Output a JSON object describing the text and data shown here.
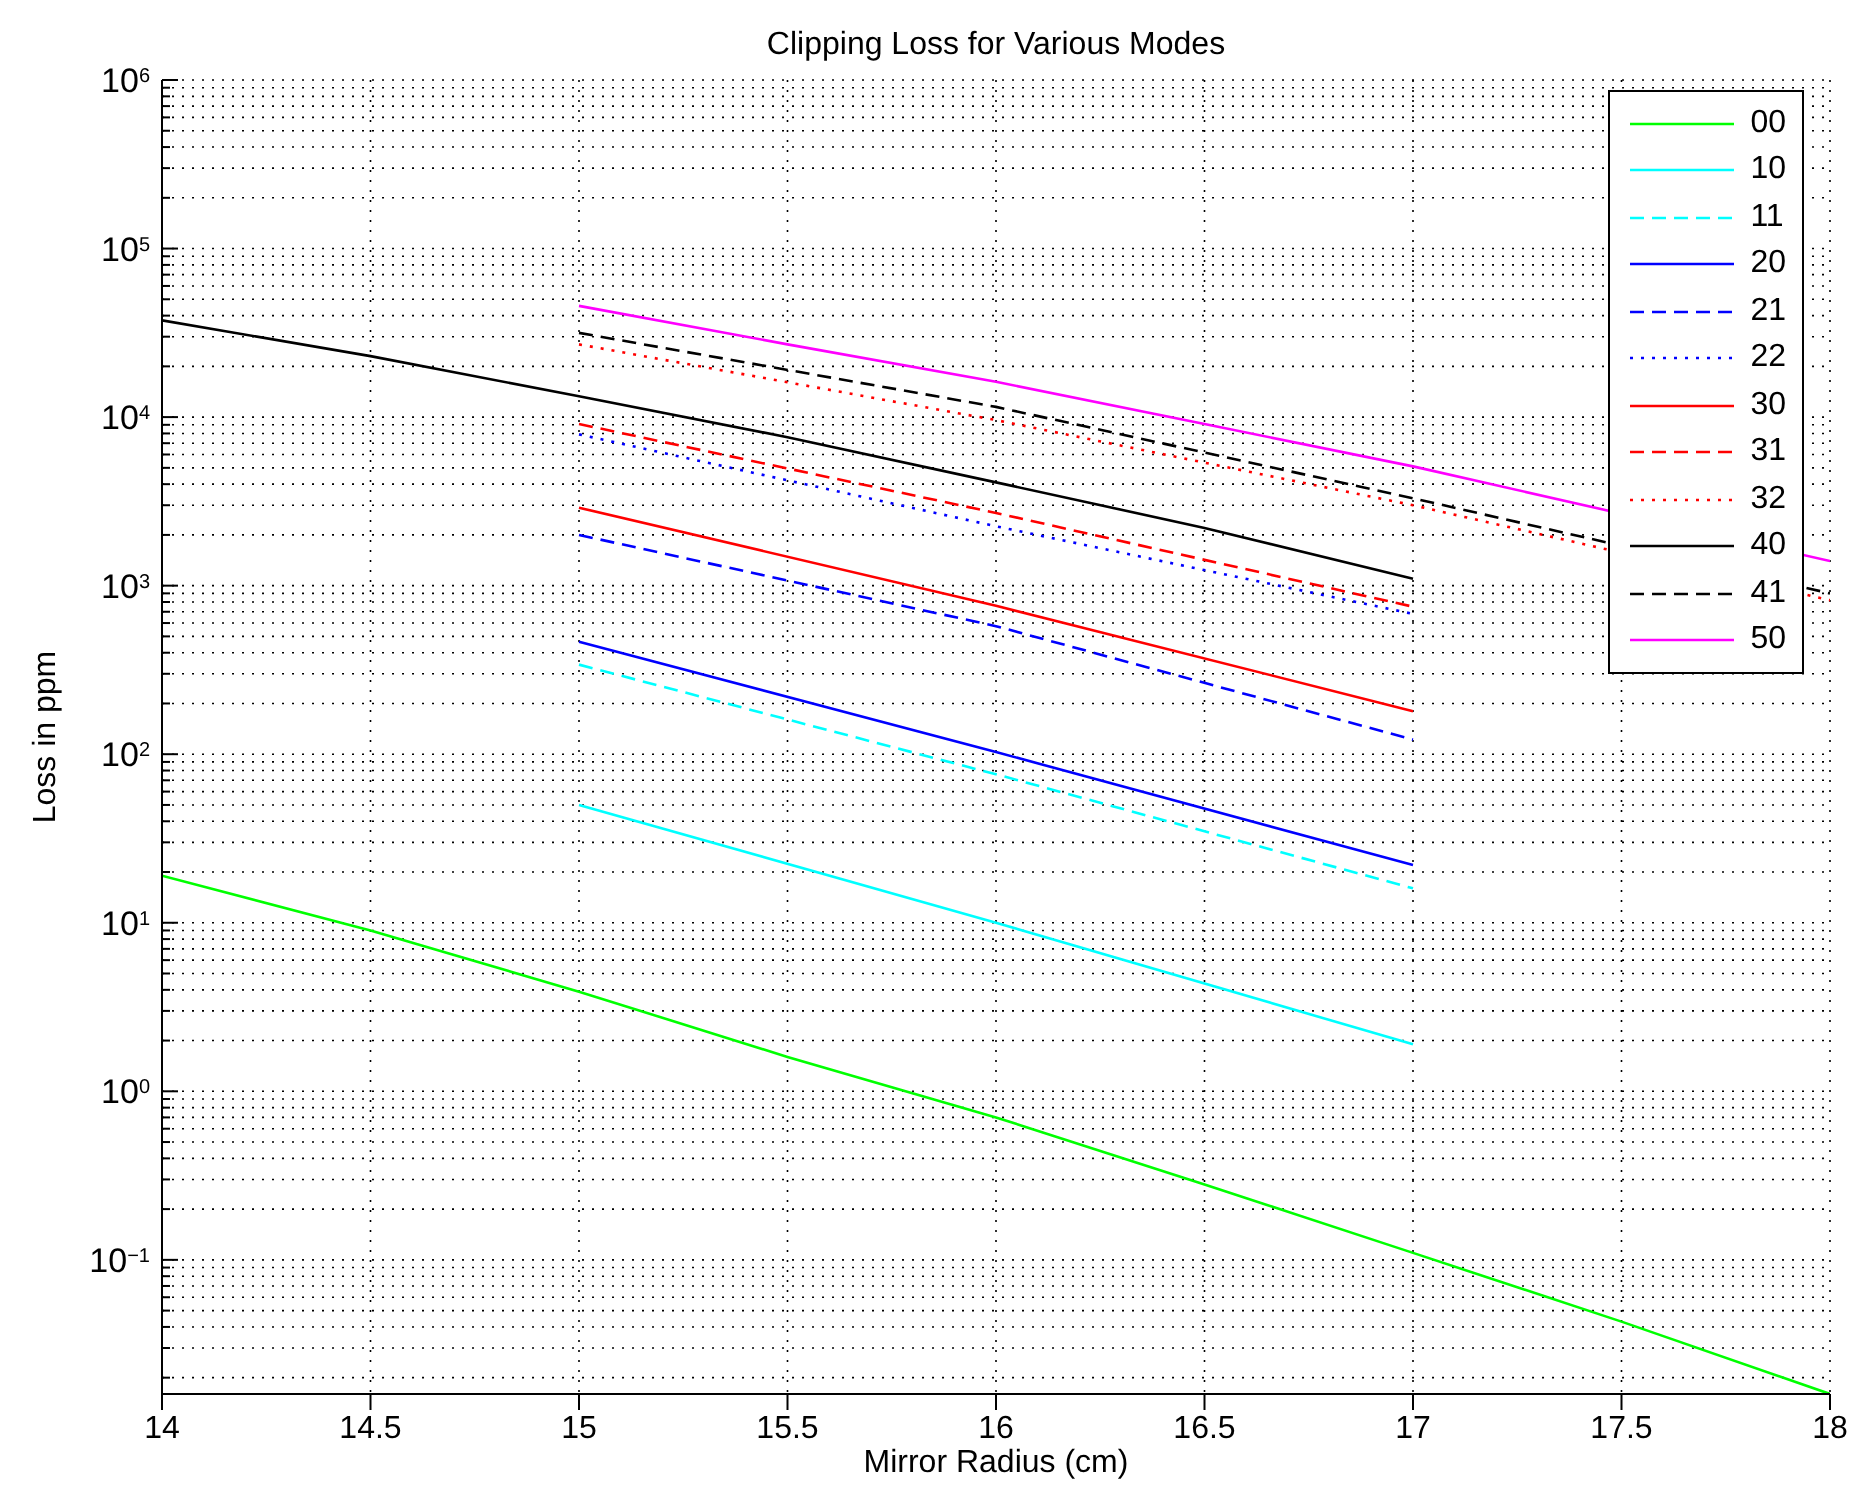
{
  "chart_data": {
    "type": "line",
    "title": "Clipping Loss for Various Modes",
    "xlabel": "Mirror Radius (cm)",
    "ylabel": "Loss in ppm",
    "log": "y",
    "grid": true,
    "legend": "top right",
    "marker": "none",
    "xlim": [
      14,
      18
    ],
    "xticks": [
      14,
      14.5,
      15,
      15.5,
      16,
      16.5,
      17,
      17.5,
      18
    ],
    "ylim": [
      0.016,
      1000000
    ],
    "yticks": [
      {
        "value": 0.02,
        "label": null
      },
      {
        "value": 0.03,
        "label": null
      },
      {
        "value": 0.04,
        "label": null
      },
      {
        "value": 0.05,
        "label": null
      },
      {
        "value": 0.06,
        "label": null
      },
      {
        "value": 0.07,
        "label": null
      },
      {
        "value": 0.08,
        "label": null
      },
      {
        "value": 0.09,
        "label": null
      },
      {
        "value": 0.1,
        "label": "10$^{−1}$"
      },
      {
        "value": 0.2,
        "label": null
      },
      {
        "value": 0.3,
        "label": null
      },
      {
        "value": 0.4,
        "label": null
      },
      {
        "value": 0.5,
        "label": null
      },
      {
        "value": 0.6,
        "label": null
      },
      {
        "value": 0.7,
        "label": null
      },
      {
        "value": 0.8,
        "label": null
      },
      {
        "value": 0.9,
        "label": null
      },
      {
        "value": 1,
        "label": "10$^{0}$"
      },
      {
        "value": 2,
        "label": null
      },
      {
        "value": 3,
        "label": null
      },
      {
        "value": 4,
        "label": null
      },
      {
        "value": 5,
        "label": null
      },
      {
        "value": 6,
        "label": null
      },
      {
        "value": 7,
        "label": null
      },
      {
        "value": 8,
        "label": null
      },
      {
        "value": 9,
        "label": null
      },
      {
        "value": 10,
        "label": "10$^{1}$"
      },
      {
        "value": 20,
        "label": null
      },
      {
        "value": 30,
        "label": null
      },
      {
        "value": 40,
        "label": null
      },
      {
        "value": 50,
        "label": null
      },
      {
        "value": 60,
        "label": null
      },
      {
        "value": 70,
        "label": null
      },
      {
        "value": 80,
        "label": null
      },
      {
        "value": 90,
        "label": null
      },
      {
        "value": 100,
        "label": "10$^{2}$"
      },
      {
        "value": 200,
        "label": null
      },
      {
        "value": 300,
        "label": null
      },
      {
        "value": 400,
        "label": null
      },
      {
        "value": 500,
        "label": null
      },
      {
        "value": 600,
        "label": null
      },
      {
        "value": 700,
        "label": null
      },
      {
        "value": 800,
        "label": null
      },
      {
        "value": 900,
        "label": null
      },
      {
        "value": 1000,
        "label": "10$^{3}$"
      },
      {
        "value": 2000,
        "label": null
      },
      {
        "value": 3000,
        "label": null
      },
      {
        "value": 4000,
        "label": null
      },
      {
        "value": 5000,
        "label": null
      },
      {
        "value": 6000,
        "label": null
      },
      {
        "value": 7000,
        "label": null
      },
      {
        "value": 8000,
        "label": null
      },
      {
        "value": 9000,
        "label": null
      },
      {
        "value": 10000,
        "label": "10$^{4}$"
      },
      {
        "value": 20000,
        "label": null
      },
      {
        "value": 30000,
        "label": null
      },
      {
        "value": 40000,
        "label": null
      },
      {
        "value": 50000,
        "label": null
      },
      {
        "value": 60000,
        "label": null
      },
      {
        "value": 70000,
        "label": null
      },
      {
        "value": 80000,
        "label": null
      },
      {
        "value": 90000,
        "label": null
      },
      {
        "value": 100000,
        "label": "10$^{5}$"
      },
      {
        "value": 200000,
        "label": null
      },
      {
        "value": 300000,
        "label": null
      },
      {
        "value": 400000,
        "label": null
      },
      {
        "value": 500000,
        "label": null
      },
      {
        "value": 600000,
        "label": null
      },
      {
        "value": 700000,
        "label": null
      },
      {
        "value": 800000,
        "label": null
      },
      {
        "value": 900000,
        "label": null
      },
      {
        "value": 1000000,
        "label": "10$^{6}$"
      }
    ],
    "series": [
      {
        "name": "00",
        "color": "#00ff00",
        "line_style": "solid",
        "x": [
          14,
          14.5,
          15,
          15.5,
          16,
          16.5,
          17,
          17.5,
          18
        ],
        "values": [
          19,
          9,
          3.9,
          1.6,
          0.7,
          0.28,
          0.11,
          0.043,
          0.016
        ]
      },
      {
        "name": "10",
        "color": "#00ffff",
        "line_style": "solid",
        "x": [
          15,
          16,
          17
        ],
        "values": [
          50,
          10,
          1.9
        ]
      },
      {
        "name": "11",
        "color": "#00ffff",
        "line_style": "dashed",
        "x": [
          15,
          16,
          17
        ],
        "values": [
          340,
          76,
          16
        ]
      },
      {
        "name": "20",
        "color": "#0000ff",
        "line_style": "solid",
        "x": [
          15,
          16,
          17
        ],
        "values": [
          465,
          103,
          22
        ]
      },
      {
        "name": "21",
        "color": "#0000ff",
        "line_style": "dashed",
        "x": [
          15,
          16,
          17
        ],
        "values": [
          2000,
          575,
          122
        ]
      },
      {
        "name": "22",
        "color": "#0000ff",
        "line_style": "dotted",
        "x": [
          15,
          16,
          17
        ],
        "values": [
          7900,
          2250,
          680
        ]
      },
      {
        "name": "30",
        "color": "#ff0000",
        "line_style": "solid",
        "x": [
          15,
          16,
          17
        ],
        "values": [
          2900,
          760,
          180
        ]
      },
      {
        "name": "31",
        "color": "#ff0000",
        "line_style": "dashed",
        "x": [
          15,
          16,
          17
        ],
        "values": [
          9100,
          2700,
          750
        ]
      },
      {
        "name": "32",
        "color": "#ff0000",
        "line_style": "dotted",
        "x": [
          15,
          16,
          17,
          18
        ],
        "values": [
          27000,
          9600,
          3000,
          820
        ]
      },
      {
        "name": "40",
        "color": "#000000",
        "line_style": "solid",
        "x": [
          14,
          14.5,
          15,
          15.5,
          16,
          16.5,
          17
        ],
        "values": [
          37500,
          23000,
          13300,
          7600,
          4100,
          2200,
          1100
        ]
      },
      {
        "name": "41",
        "color": "#000000",
        "line_style": "dashed",
        "x": [
          15,
          16,
          17,
          18
        ],
        "values": [
          31600,
          11500,
          3300,
          900
        ]
      },
      {
        "name": "50",
        "color": "#ff00ff",
        "line_style": "solid",
        "x": [
          15,
          15.5,
          16,
          16.5,
          17,
          18
        ],
        "values": [
          45700,
          27000,
          16200,
          9100,
          5100,
          1400
        ]
      }
    ]
  }
}
